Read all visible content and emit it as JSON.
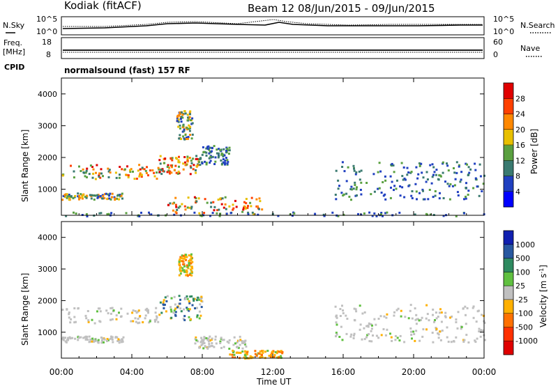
{
  "header": {
    "station": "Kodiak (fitACF)",
    "beam_date": "Beam 12  08/Jun/2015 - 09/Jun/2015"
  },
  "summary": {
    "noise_left_label": "N.Sky",
    "noise_right_label": "N.Search",
    "noise_left_ticks": [
      "10^5",
      "10^0"
    ],
    "noise_right_ticks": [
      "10^5",
      "10^0"
    ],
    "freq_label_1": "Freq.",
    "freq_label_2": "[MHz]",
    "freq_ticks": [
      "18",
      "8"
    ],
    "nave_label": "Nave",
    "nave_ticks": [
      "60",
      "0"
    ],
    "cpid_label": "CPID",
    "cpid_text": "normalsound (fast) 157 RF"
  },
  "chart_data": [
    {
      "type": "heatmap",
      "name": "power",
      "ylabel": "Slant Range [km]",
      "xlabel": "Time UT",
      "xticks": [
        "00:00",
        "04:00",
        "08:00",
        "12:00",
        "16:00",
        "20:00",
        "00:00"
      ],
      "yticks": [
        "1000",
        "2000",
        "3000",
        "4000"
      ],
      "ylim": [
        180,
        4500
      ],
      "xlim_hours": [
        0,
        24
      ],
      "colorbar_label": "Power [dB]",
      "colorbar_ticks": [
        "4",
        "8",
        "12",
        "16",
        "20",
        "24",
        "28"
      ],
      "colorbar_colors": [
        "#0000ff",
        "#2040c0",
        "#3a7a70",
        "#5aa040",
        "#e8c000",
        "#ff8800",
        "#ff4000",
        "#e00000"
      ],
      "scatter_regions": [
        {
          "t0": 0,
          "t1": 5.5,
          "r0": 1350,
          "r1": 1800,
          "intensity": "high"
        },
        {
          "t0": 5.5,
          "t1": 7.8,
          "r0": 1500,
          "r1": 2100,
          "intensity": "high"
        },
        {
          "t0": 7.8,
          "t1": 9.5,
          "r0": 1800,
          "r1": 2400,
          "intensity": "low"
        },
        {
          "t0": 0,
          "t1": 3.5,
          "r0": 700,
          "r1": 900,
          "intensity": "medium"
        },
        {
          "t0": 6.0,
          "t1": 11.5,
          "r0": 250,
          "r1": 800,
          "intensity": "high"
        },
        {
          "t0": 6.5,
          "t1": 7.4,
          "r0": 2600,
          "r1": 3500,
          "intensity": "medium"
        },
        {
          "t0": 15.5,
          "t1": 24,
          "r0": 700,
          "r1": 1900,
          "intensity": "low"
        },
        {
          "t0": 0,
          "t1": 24,
          "r0": 180,
          "r1": 300,
          "intensity": "low"
        }
      ]
    },
    {
      "type": "heatmap",
      "name": "velocity",
      "ylabel": "Slant Range [km]",
      "xlabel": "Time UT",
      "xticks": [
        "00:00",
        "04:00",
        "08:00",
        "12:00",
        "16:00",
        "20:00",
        "00:00"
      ],
      "yticks": [
        "1000",
        "2000",
        "3000",
        "4000"
      ],
      "ylim": [
        180,
        4500
      ],
      "xlim_hours": [
        0,
        24
      ],
      "colorbar_label": "Velocity [m s^-1]",
      "colorbar_ticks": [
        "1000",
        "500",
        "100",
        "25",
        "-25",
        "-100",
        "-500",
        "-1000"
      ],
      "colorbar_colors": [
        "#1020b0",
        "#2858a0",
        "#2e8a60",
        "#60c040",
        "#c0c0c0",
        "#ffb000",
        "#ff7000",
        "#ff3000",
        "#e00000"
      ],
      "scatter_regions": [
        {
          "t0": 0,
          "t1": 5.5,
          "r0": 1300,
          "r1": 1800,
          "velocity": "ground (gray)"
        },
        {
          "t0": 5.5,
          "t1": 8.0,
          "r0": 1400,
          "r1": 2200,
          "velocity": "mixed"
        },
        {
          "t0": 0,
          "t1": 3.5,
          "r0": 700,
          "r1": 900,
          "velocity": "ground (gray)"
        },
        {
          "t0": 7.5,
          "t1": 10.5,
          "r0": 500,
          "r1": 900,
          "velocity": "ground (gray)"
        },
        {
          "t0": 9.5,
          "t1": 12.5,
          "r0": 200,
          "r1": 450,
          "velocity": "negative (orange)"
        },
        {
          "t0": 6.6,
          "t1": 7.4,
          "r0": 2800,
          "r1": 3500,
          "velocity": "negative (orange)"
        },
        {
          "t0": 15.5,
          "t1": 24,
          "r0": 700,
          "r1": 1900,
          "velocity": "ground (gray)"
        }
      ]
    }
  ]
}
